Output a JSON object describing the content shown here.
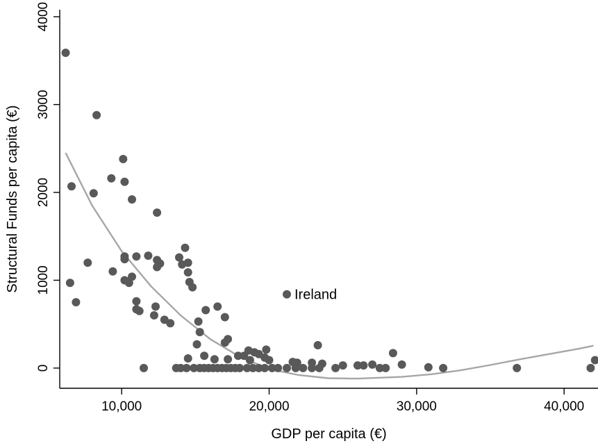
{
  "chart_data": {
    "type": "scatter",
    "xlabel": "GDP per capita (€)",
    "ylabel": "Structural Funds per capita (€)",
    "xlim": [
      5800,
      42300
    ],
    "ylim": [
      -230,
      4080
    ],
    "xticks": [
      10000,
      20000,
      30000,
      40000
    ],
    "xtick_labels": [
      "10,000",
      "20,000",
      "30,000",
      "40,000"
    ],
    "yticks": [
      0,
      1000,
      2000,
      3000,
      4000
    ],
    "ytick_labels": [
      "0",
      "1000",
      "2000",
      "3000",
      "4000"
    ],
    "grid": false,
    "colors": {
      "points": "#595959",
      "fit_line": "#a6a6a6"
    },
    "fit_curve": {
      "type": "quadratic",
      "x": [
        6200,
        8000,
        10000,
        12000,
        14000,
        16000,
        18000,
        20000,
        22000,
        24000,
        26000,
        27500,
        29000,
        31000,
        33000,
        35000,
        37000,
        39000,
        41000,
        42000
      ],
      "y": [
        2450,
        1850,
        1330,
        930,
        600,
        330,
        130,
        -10,
        -80,
        -115,
        -120,
        -110,
        -100,
        -70,
        -25,
        35,
        100,
        160,
        220,
        255
      ]
    },
    "annotations": [
      {
        "text": "Ireland",
        "x": 21200,
        "y": 840
      }
    ],
    "points": [
      {
        "x": 6200,
        "y": 3590
      },
      {
        "x": 8300,
        "y": 2880
      },
      {
        "x": 10100,
        "y": 2380
      },
      {
        "x": 9300,
        "y": 2160
      },
      {
        "x": 10200,
        "y": 2120
      },
      {
        "x": 6600,
        "y": 2070
      },
      {
        "x": 8100,
        "y": 1990
      },
      {
        "x": 10700,
        "y": 1920
      },
      {
        "x": 12400,
        "y": 1770
      },
      {
        "x": 14300,
        "y": 1370
      },
      {
        "x": 10200,
        "y": 1270
      },
      {
        "x": 11000,
        "y": 1270
      },
      {
        "x": 11800,
        "y": 1280
      },
      {
        "x": 12400,
        "y": 1230
      },
      {
        "x": 13900,
        "y": 1260
      },
      {
        "x": 10200,
        "y": 1240
      },
      {
        "x": 12600,
        "y": 1190
      },
      {
        "x": 12400,
        "y": 1150
      },
      {
        "x": 14100,
        "y": 1180
      },
      {
        "x": 14500,
        "y": 1200
      },
      {
        "x": 7700,
        "y": 1200
      },
      {
        "x": 9400,
        "y": 1100
      },
      {
        "x": 14500,
        "y": 1090
      },
      {
        "x": 10700,
        "y": 1040
      },
      {
        "x": 10200,
        "y": 1000
      },
      {
        "x": 10500,
        "y": 970
      },
      {
        "x": 14600,
        "y": 980
      },
      {
        "x": 14800,
        "y": 920
      },
      {
        "x": 6500,
        "y": 970
      },
      {
        "x": 21200,
        "y": 840
      },
      {
        "x": 11000,
        "y": 760
      },
      {
        "x": 6900,
        "y": 750
      },
      {
        "x": 12300,
        "y": 700
      },
      {
        "x": 16500,
        "y": 700
      },
      {
        "x": 11000,
        "y": 670
      },
      {
        "x": 11200,
        "y": 650
      },
      {
        "x": 15700,
        "y": 660
      },
      {
        "x": 12200,
        "y": 600
      },
      {
        "x": 17000,
        "y": 580
      },
      {
        "x": 12900,
        "y": 550
      },
      {
        "x": 13300,
        "y": 510
      },
      {
        "x": 15200,
        "y": 530
      },
      {
        "x": 15300,
        "y": 410
      },
      {
        "x": 17200,
        "y": 330
      },
      {
        "x": 17000,
        "y": 290
      },
      {
        "x": 15100,
        "y": 270
      },
      {
        "x": 23300,
        "y": 260
      },
      {
        "x": 18600,
        "y": 200
      },
      {
        "x": 19000,
        "y": 180
      },
      {
        "x": 19800,
        "y": 210
      },
      {
        "x": 28400,
        "y": 170
      },
      {
        "x": 15600,
        "y": 140
      },
      {
        "x": 17900,
        "y": 140
      },
      {
        "x": 18300,
        "y": 140
      },
      {
        "x": 19300,
        "y": 160
      },
      {
        "x": 14500,
        "y": 110
      },
      {
        "x": 17200,
        "y": 100
      },
      {
        "x": 16300,
        "y": 100
      },
      {
        "x": 18700,
        "y": 90
      },
      {
        "x": 19700,
        "y": 120
      },
      {
        "x": 20000,
        "y": 90
      },
      {
        "x": 42100,
        "y": 90
      },
      {
        "x": 21600,
        "y": 70
      },
      {
        "x": 21900,
        "y": 60
      },
      {
        "x": 22900,
        "y": 60
      },
      {
        "x": 23600,
        "y": 50
      },
      {
        "x": 25000,
        "y": 30
      },
      {
        "x": 26000,
        "y": 30
      },
      {
        "x": 26400,
        "y": 30
      },
      {
        "x": 27000,
        "y": 40
      },
      {
        "x": 29000,
        "y": 40
      },
      {
        "x": 30800,
        "y": 10
      },
      {
        "x": 11500,
        "y": 0
      },
      {
        "x": 13700,
        "y": 0
      },
      {
        "x": 14000,
        "y": 0
      },
      {
        "x": 14400,
        "y": 0
      },
      {
        "x": 14900,
        "y": 0
      },
      {
        "x": 15300,
        "y": 0
      },
      {
        "x": 15600,
        "y": 0
      },
      {
        "x": 15900,
        "y": 0
      },
      {
        "x": 16200,
        "y": 0
      },
      {
        "x": 16500,
        "y": 0
      },
      {
        "x": 16800,
        "y": 0
      },
      {
        "x": 17100,
        "y": 0
      },
      {
        "x": 17400,
        "y": 0
      },
      {
        "x": 17700,
        "y": 0
      },
      {
        "x": 18000,
        "y": 0
      },
      {
        "x": 18500,
        "y": 0
      },
      {
        "x": 18900,
        "y": 0
      },
      {
        "x": 19300,
        "y": 0
      },
      {
        "x": 19700,
        "y": 0
      },
      {
        "x": 20200,
        "y": 0
      },
      {
        "x": 20600,
        "y": 0
      },
      {
        "x": 21200,
        "y": 0
      },
      {
        "x": 21800,
        "y": 0
      },
      {
        "x": 22300,
        "y": 0
      },
      {
        "x": 22900,
        "y": 0
      },
      {
        "x": 23400,
        "y": 0
      },
      {
        "x": 24500,
        "y": 0
      },
      {
        "x": 27500,
        "y": 0
      },
      {
        "x": 27900,
        "y": 0
      },
      {
        "x": 31800,
        "y": 0
      },
      {
        "x": 36800,
        "y": 0
      },
      {
        "x": 41800,
        "y": 0
      }
    ]
  }
}
